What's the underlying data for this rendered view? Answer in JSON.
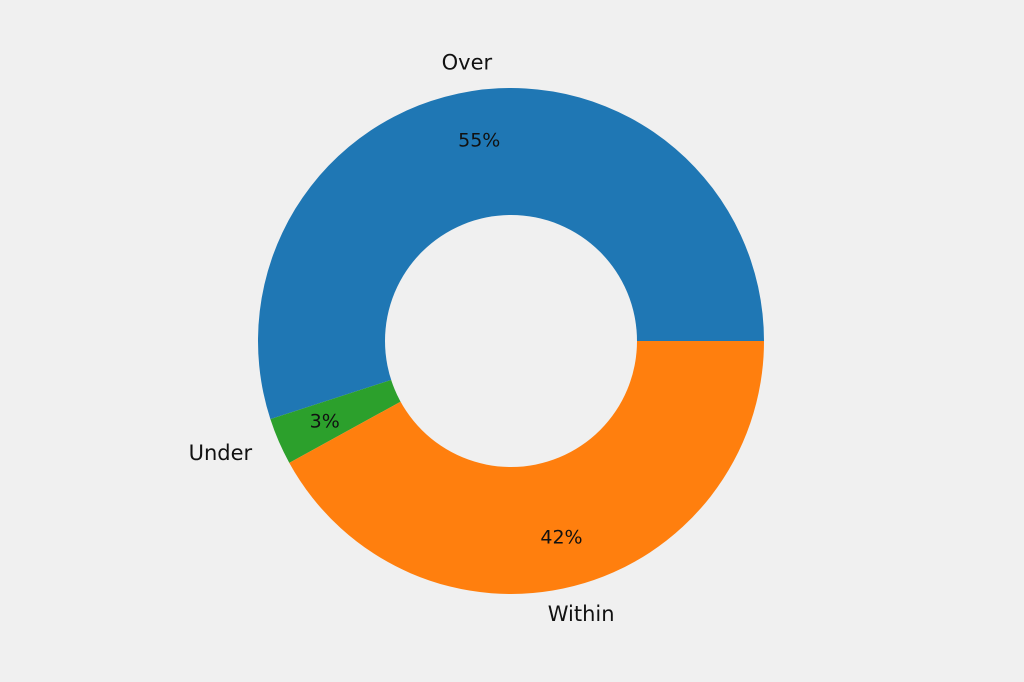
{
  "chart_data": {
    "type": "pie",
    "donut": true,
    "start_angle_deg": 0,
    "direction": "counterclockwise",
    "slices": [
      {
        "label": "Over",
        "value": 55,
        "pct_label": "55%",
        "color": "#1f77b4"
      },
      {
        "label": "Under",
        "value": 3,
        "pct_label": "3%",
        "color": "#2ca02c"
      },
      {
        "label": "Within",
        "value": 42,
        "pct_label": "42%",
        "color": "#ff7f0e"
      }
    ],
    "legend": "none",
    "background": "#f0f0f0"
  }
}
